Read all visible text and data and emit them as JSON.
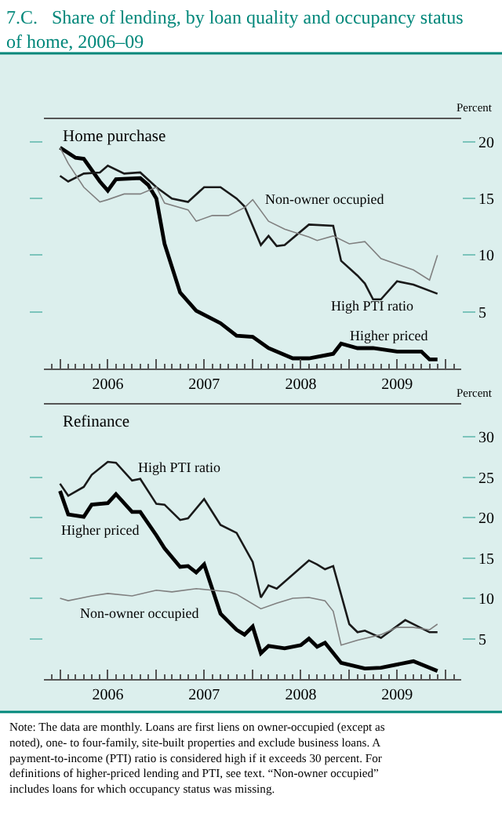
{
  "chart_data": [
    {
      "type": "line",
      "title": "7.C.   Share of lending, by loan quality and occupancy status of home, 2006–09",
      "subtitle": "Home purchase",
      "ylabel": "Percent",
      "xlim": [
        "2005-11",
        "2010-03"
      ],
      "ylim": [
        0,
        22
      ],
      "yticks": [
        5,
        10,
        15,
        20
      ],
      "xticks": [
        {
          "value": "2006-01",
          "label": null
        },
        {
          "value": "2006-07",
          "label": "2006"
        },
        {
          "value": "2007-01",
          "label": null
        },
        {
          "value": "2007-07",
          "label": "2007"
        },
        {
          "value": "2008-01",
          "label": null
        },
        {
          "value": "2008-07",
          "label": "2008"
        },
        {
          "value": "2009-01",
          "label": null
        },
        {
          "value": "2009-07",
          "label": "2009"
        },
        {
          "value": "2010-01",
          "label": null
        }
      ],
      "series": [
        {
          "name": "Higher priced",
          "color": "#000000",
          "x": [
            "2006-01",
            "2006-03",
            "2006-04",
            "2006-06",
            "2006-07",
            "2006-08",
            "2006-11",
            "2006-12",
            "2007-01",
            "2007-02",
            "2007-04",
            "2007-06",
            "2007-09",
            "2007-11",
            "2008-01",
            "2008-03",
            "2008-06",
            "2008-08",
            "2008-11",
            "2008-12",
            "2009-02",
            "2009-04",
            "2009-07",
            "2009-10",
            "2009-11",
            "2009-12"
          ],
          "values": [
            19.5,
            18.6,
            18.5,
            16.5,
            15.7,
            16.7,
            16.8,
            16.2,
            15.0,
            11.0,
            6.7,
            5.1,
            4.0,
            2.9,
            2.8,
            1.8,
            0.9,
            0.9,
            1.3,
            2.2,
            1.8,
            1.8,
            1.5,
            1.5,
            0.8,
            0.8
          ]
        },
        {
          "name": "High PTI ratio",
          "color": "#1a1a1a",
          "x": [
            "2006-01",
            "2006-02",
            "2006-04",
            "2006-06",
            "2006-07",
            "2006-09",
            "2006-11",
            "2007-01",
            "2007-03",
            "2007-05",
            "2007-07",
            "2007-09",
            "2007-11",
            "2007-12",
            "2008-02",
            "2008-03",
            "2008-04",
            "2008-05",
            "2008-08",
            "2008-11",
            "2008-12",
            "2009-02",
            "2009-03",
            "2009-04",
            "2009-05",
            "2009-07",
            "2009-09",
            "2009-12"
          ],
          "values": [
            17.0,
            16.5,
            17.2,
            17.3,
            17.9,
            17.2,
            17.3,
            16.0,
            15.0,
            14.7,
            16.0,
            16.0,
            15.0,
            14.3,
            10.9,
            11.7,
            10.8,
            10.9,
            12.7,
            12.6,
            9.5,
            8.2,
            7.5,
            6.1,
            6.1,
            7.7,
            7.4,
            6.6
          ]
        },
        {
          "name": "Non-owner occupied",
          "color": "#808080",
          "x": [
            "2006-01",
            "2006-02",
            "2006-04",
            "2006-06",
            "2006-07",
            "2006-09",
            "2006-11",
            "2007-01",
            "2007-02",
            "2007-05",
            "2007-06",
            "2007-08",
            "2007-10",
            "2007-12",
            "2008-01",
            "2008-03",
            "2008-05",
            "2008-08",
            "2008-09",
            "2008-11",
            "2009-01",
            "2009-03",
            "2009-05",
            "2009-07",
            "2009-09",
            "2009-11",
            "2009-12"
          ],
          "values": [
            19.5,
            18.1,
            16.0,
            14.7,
            14.9,
            15.4,
            15.4,
            16.0,
            14.6,
            14.0,
            13.0,
            13.5,
            13.5,
            14.2,
            14.9,
            13.0,
            12.3,
            11.6,
            11.3,
            11.7,
            11.0,
            11.2,
            9.7,
            9.2,
            8.7,
            7.8,
            10.0
          ]
        }
      ]
    },
    {
      "type": "line",
      "subtitle": "Refinance",
      "ylabel": "Percent",
      "xlim": [
        "2005-11",
        "2010-03"
      ],
      "ylim": [
        0,
        34
      ],
      "yticks": [
        5,
        10,
        15,
        20,
        25,
        30
      ],
      "xticks": [
        {
          "value": "2006-01",
          "label": null
        },
        {
          "value": "2006-07",
          "label": "2006"
        },
        {
          "value": "2007-01",
          "label": null
        },
        {
          "value": "2007-07",
          "label": "2007"
        },
        {
          "value": "2008-01",
          "label": null
        },
        {
          "value": "2008-07",
          "label": "2008"
        },
        {
          "value": "2009-01",
          "label": null
        },
        {
          "value": "2009-07",
          "label": "2009"
        },
        {
          "value": "2010-01",
          "label": null
        }
      ],
      "annotations": [
        "Note: The data are monthly. Loans are first liens on owner-occupied (except as noted), one- to four-family, site-built properties and exclude business loans. A payment-to-income (PTI) ratio is considered high if it exceeds 30 percent. For definitions of higher-priced lending and PTI, see text. “Non-owner occupied” includes loans for which occupancy status was missing."
      ],
      "series": [
        {
          "name": "Higher priced",
          "color": "#000000",
          "x": [
            "2006-01",
            "2006-02",
            "2006-04",
            "2006-05",
            "2006-07",
            "2006-08",
            "2006-10",
            "2006-11",
            "2007-01",
            "2007-02",
            "2007-04",
            "2007-05",
            "2007-06",
            "2007-07",
            "2007-09",
            "2007-11",
            "2007-12",
            "2008-01",
            "2008-02",
            "2008-03",
            "2008-05",
            "2008-07",
            "2008-08",
            "2008-09",
            "2008-10",
            "2008-12",
            "2009-03",
            "2009-05",
            "2009-09",
            "2009-12"
          ],
          "values": [
            23.3,
            20.4,
            20.1,
            21.6,
            21.8,
            22.9,
            20.7,
            20.7,
            17.8,
            16.2,
            13.9,
            14.0,
            13.2,
            14.2,
            8.1,
            6.1,
            5.5,
            6.5,
            3.2,
            4.1,
            3.8,
            4.2,
            5.0,
            4.0,
            4.5,
            2.0,
            1.3,
            1.4,
            2.2,
            1.0
          ]
        },
        {
          "name": "High PTI ratio",
          "color": "#1a1a1a",
          "x": [
            "2006-01",
            "2006-02",
            "2006-04",
            "2006-05",
            "2006-07",
            "2006-08",
            "2006-10",
            "2006-11",
            "2007-01",
            "2007-02",
            "2007-04",
            "2007-05",
            "2007-07",
            "2007-09",
            "2007-11",
            "2008-01",
            "2008-02",
            "2008-03",
            "2008-04",
            "2008-08",
            "2008-09",
            "2008-10",
            "2008-11",
            "2009-01",
            "2009-02",
            "2009-03",
            "2009-05",
            "2009-08",
            "2009-11",
            "2009-12"
          ],
          "values": [
            24.2,
            22.7,
            23.8,
            25.3,
            26.9,
            26.8,
            24.6,
            24.8,
            21.7,
            21.6,
            19.7,
            19.9,
            22.3,
            19.1,
            18.1,
            14.5,
            10.1,
            11.6,
            11.2,
            14.7,
            14.2,
            13.6,
            14.0,
            6.8,
            5.8,
            6.0,
            5.1,
            7.3,
            5.8,
            5.8
          ]
        },
        {
          "name": "Non-owner occupied",
          "color": "#808080",
          "x": [
            "2006-01",
            "2006-02",
            "2006-05",
            "2006-07",
            "2006-10",
            "2007-01",
            "2007-03",
            "2007-06",
            "2007-08",
            "2007-10",
            "2007-11",
            "2008-02",
            "2008-04",
            "2008-06",
            "2008-08",
            "2008-10",
            "2008-11",
            "2008-12",
            "2009-02",
            "2009-05",
            "2009-07",
            "2009-09",
            "2009-11",
            "2009-12"
          ],
          "values": [
            10.0,
            9.7,
            10.3,
            10.6,
            10.3,
            11.0,
            10.8,
            11.2,
            11.0,
            10.8,
            10.5,
            8.7,
            9.4,
            10.0,
            10.1,
            9.7,
            8.4,
            4.2,
            4.8,
            5.5,
            6.4,
            6.4,
            6.1,
            6.8
          ]
        }
      ]
    }
  ]
}
